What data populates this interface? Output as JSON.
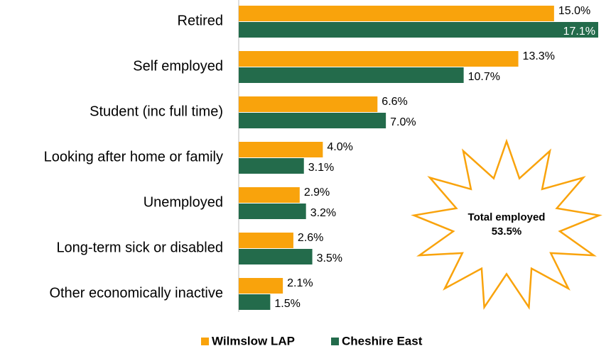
{
  "chart_data": {
    "type": "hbar",
    "categories": [
      "Retired",
      "Self employed",
      "Student (inc full time)",
      "Looking after home or family",
      "Unemployed",
      "Long-term sick or disabled",
      "Other economically  inactive"
    ],
    "series": [
      {
        "name": "Wilmslow LAP",
        "color": "#f9a30c",
        "values": [
          15.0,
          13.3,
          6.6,
          4.0,
          2.9,
          2.6,
          2.1
        ],
        "value_labels": [
          "15.0%",
          "13.3%",
          "6.6%",
          "4.0%",
          "2.9%",
          "2.6%",
          "2.1%"
        ]
      },
      {
        "name": "Cheshire East",
        "color": "#236b4b",
        "values": [
          17.1,
          10.7,
          7.0,
          3.1,
          3.2,
          3.5,
          1.5
        ],
        "value_labels": [
          "17.1%",
          "10.7%",
          "7.0%",
          "3.1%",
          "3.2%",
          "3.5%",
          "1.5%"
        ]
      }
    ],
    "annotation": [
      "Total employed",
      "53.5%"
    ],
    "legend": "bottom"
  }
}
